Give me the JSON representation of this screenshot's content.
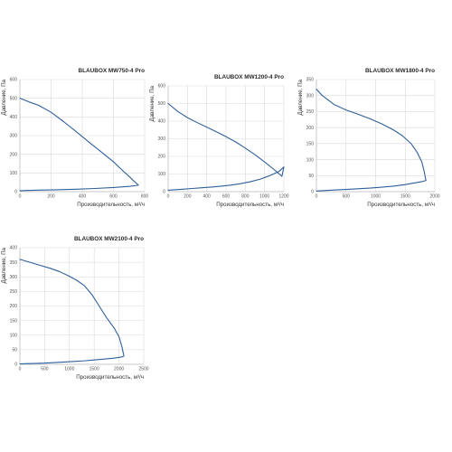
{
  "chart_data": [
    {
      "type": "line",
      "title": "BLAUBOX MW750-4 Pro",
      "xlabel": "Производительность, м³/ч",
      "ylabel": "Давление, Па",
      "xlim": [
        0,
        800
      ],
      "ylim": [
        0,
        600
      ],
      "x_ticks": [
        "0",
        "200",
        "400",
        "600",
        "800"
      ],
      "y_ticks": [
        "0",
        "100",
        "200",
        "300",
        "400",
        "500",
        "600"
      ],
      "grid": true,
      "series": [
        {
          "x": [
            0,
            60,
            120,
            200,
            280,
            360,
            440,
            520,
            600,
            660,
            700,
            720,
            740,
            760,
            740,
            700,
            600,
            480,
            360,
            240,
            120,
            0
          ],
          "y": [
            500,
            480,
            462,
            425,
            375,
            322,
            267,
            214,
            160,
            112,
            82,
            65,
            50,
            35,
            32,
            28,
            22,
            17,
            13,
            10,
            8,
            5
          ]
        }
      ]
    },
    {
      "type": "line",
      "title": "BLAUBOX MW1200-4 Pro",
      "xlabel": "Производительность, м³/ч",
      "ylabel": "Давление, Па",
      "xlim": [
        0,
        1200
      ],
      "ylim": [
        0,
        600
      ],
      "x_ticks": [
        "0",
        "200",
        "400",
        "600",
        "800",
        "1000",
        "1200"
      ],
      "y_ticks": [
        "0",
        "100",
        "200",
        "300",
        "400",
        "500",
        "600"
      ],
      "grid": true,
      "series": [
        {
          "x": [
            0,
            100,
            200,
            300,
            400,
            500,
            600,
            700,
            800,
            900,
            1000,
            1100,
            1180,
            1200,
            1150,
            1050,
            950,
            850,
            750,
            650,
            550,
            450,
            350,
            250,
            150,
            50,
            0
          ],
          "y": [
            500,
            455,
            420,
            392,
            366,
            340,
            312,
            282,
            247,
            210,
            168,
            125,
            87,
            140,
            115,
            90,
            70,
            56,
            45,
            37,
            31,
            26,
            22,
            18,
            14,
            10,
            8
          ]
        }
      ]
    },
    {
      "type": "line",
      "title": "BLAUBOX MW1800-4 Pro",
      "xlabel": "Производительность, м³/ч",
      "ylabel": "Давление, Па",
      "xlim": [
        0,
        2000
      ],
      "ylim": [
        0,
        350
      ],
      "x_ticks": [
        "0",
        "500",
        "1000",
        "1500",
        "2000"
      ],
      "y_ticks": [
        "0",
        "50",
        "100",
        "150",
        "200",
        "250",
        "300",
        "350"
      ],
      "grid": true,
      "series": [
        {
          "x": [
            0,
            100,
            300,
            500,
            700,
            900,
            1100,
            1300,
            1450,
            1600,
            1700,
            1780,
            1820,
            1850,
            1800,
            1650,
            1500,
            1300,
            1100,
            900,
            700,
            500,
            300,
            100,
            0
          ],
          "y": [
            320,
            300,
            272,
            255,
            242,
            228,
            212,
            193,
            175,
            150,
            123,
            93,
            63,
            35,
            32,
            27,
            22,
            17,
            14,
            11,
            9,
            7,
            5,
            3,
            2
          ]
        }
      ]
    },
    {
      "type": "line",
      "title": "BLAUBOX MW2100-4 Pro",
      "xlabel": "Производительность, м³/ч",
      "ylabel": "Давление, Па",
      "xlim": [
        0,
        2500
      ],
      "ylim": [
        0,
        400
      ],
      "x_ticks": [
        "0",
        "500",
        "1000",
        "1500",
        "2000",
        "2500"
      ],
      "y_ticks": [
        "0",
        "50",
        "100",
        "150",
        "200",
        "250",
        "300",
        "350",
        "400"
      ],
      "grid": true,
      "series": [
        {
          "x": [
            0,
            200,
            400,
            600,
            800,
            1000,
            1150,
            1300,
            1450,
            1600,
            1750,
            1900,
            2000,
            2060,
            2100,
            2050,
            1900,
            1700,
            1500,
            1300,
            1100,
            900,
            700,
            500,
            300,
            100,
            0
          ],
          "y": [
            360,
            350,
            340,
            330,
            318,
            302,
            288,
            270,
            240,
            200,
            160,
            125,
            95,
            60,
            28,
            25,
            21,
            18,
            15,
            12,
            10,
            8,
            6,
            4,
            3,
            2,
            1
          ]
        }
      ]
    }
  ]
}
